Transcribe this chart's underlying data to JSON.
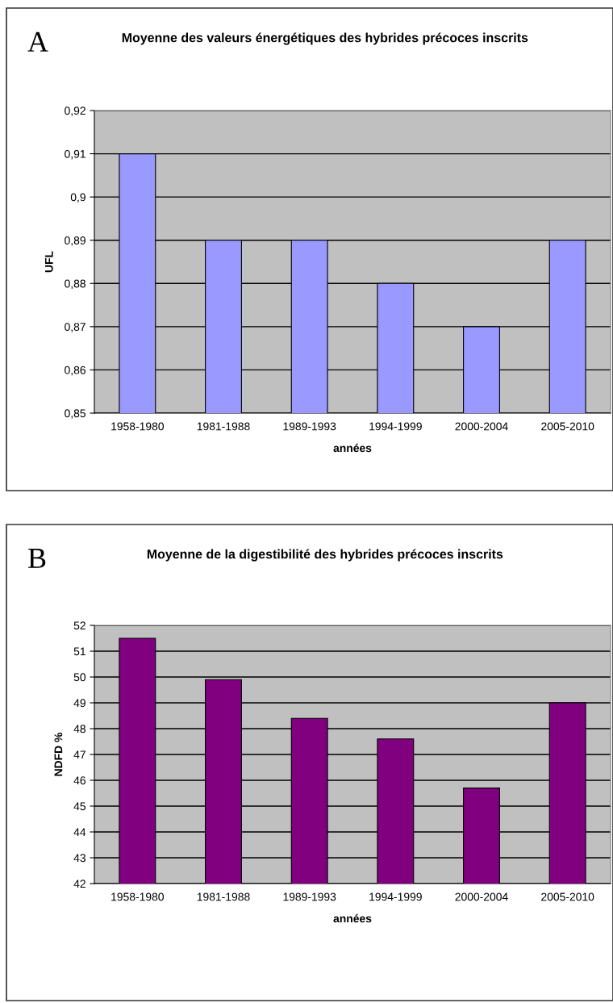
{
  "chart_data": [
    {
      "type": "bar",
      "title": "Moyenne des valeurs énergétiques des hybrides précoces inscrits",
      "xlabel": "années",
      "ylabel": "UFL",
      "annotations": [
        "A"
      ],
      "categories": [
        "1958-1980",
        "1981-1988",
        "1989-1993",
        "1994-1999",
        "2000-2004",
        "2005-2010"
      ],
      "values": [
        0.91,
        0.89,
        0.89,
        0.88,
        0.87,
        0.89
      ],
      "color": "#9999ff",
      "ylim": [
        0.85,
        0.92
      ],
      "yticks": [
        {
          "value": 0.85,
          "label": "0,85"
        },
        {
          "value": 0.86,
          "label": "0,86"
        },
        {
          "value": 0.87,
          "label": "0,87"
        },
        {
          "value": 0.88,
          "label": "0,88"
        },
        {
          "value": 0.89,
          "label": "0,89"
        },
        {
          "value": 0.9,
          "label": "0,9"
        },
        {
          "value": 0.91,
          "label": "0,91"
        },
        {
          "value": 0.92,
          "label": "0,92"
        }
      ],
      "grid": "y",
      "legend": false
    },
    {
      "type": "bar",
      "title": "Moyenne de la digestibilité des hybrides précoces inscrits",
      "xlabel": "années",
      "ylabel": "NDFD %",
      "annotations": [
        "B"
      ],
      "categories": [
        "1958-1980",
        "1981-1988",
        "1989-1993",
        "1994-1999",
        "2000-2004",
        "2005-2010"
      ],
      "values": [
        51.5,
        49.9,
        48.4,
        47.6,
        45.7,
        49.0
      ],
      "color": "#800080",
      "ylim": [
        42,
        52
      ],
      "yticks": [
        42,
        43,
        44,
        45,
        46,
        47,
        48,
        49,
        50,
        51,
        52
      ],
      "grid": "y",
      "legend": false
    }
  ]
}
